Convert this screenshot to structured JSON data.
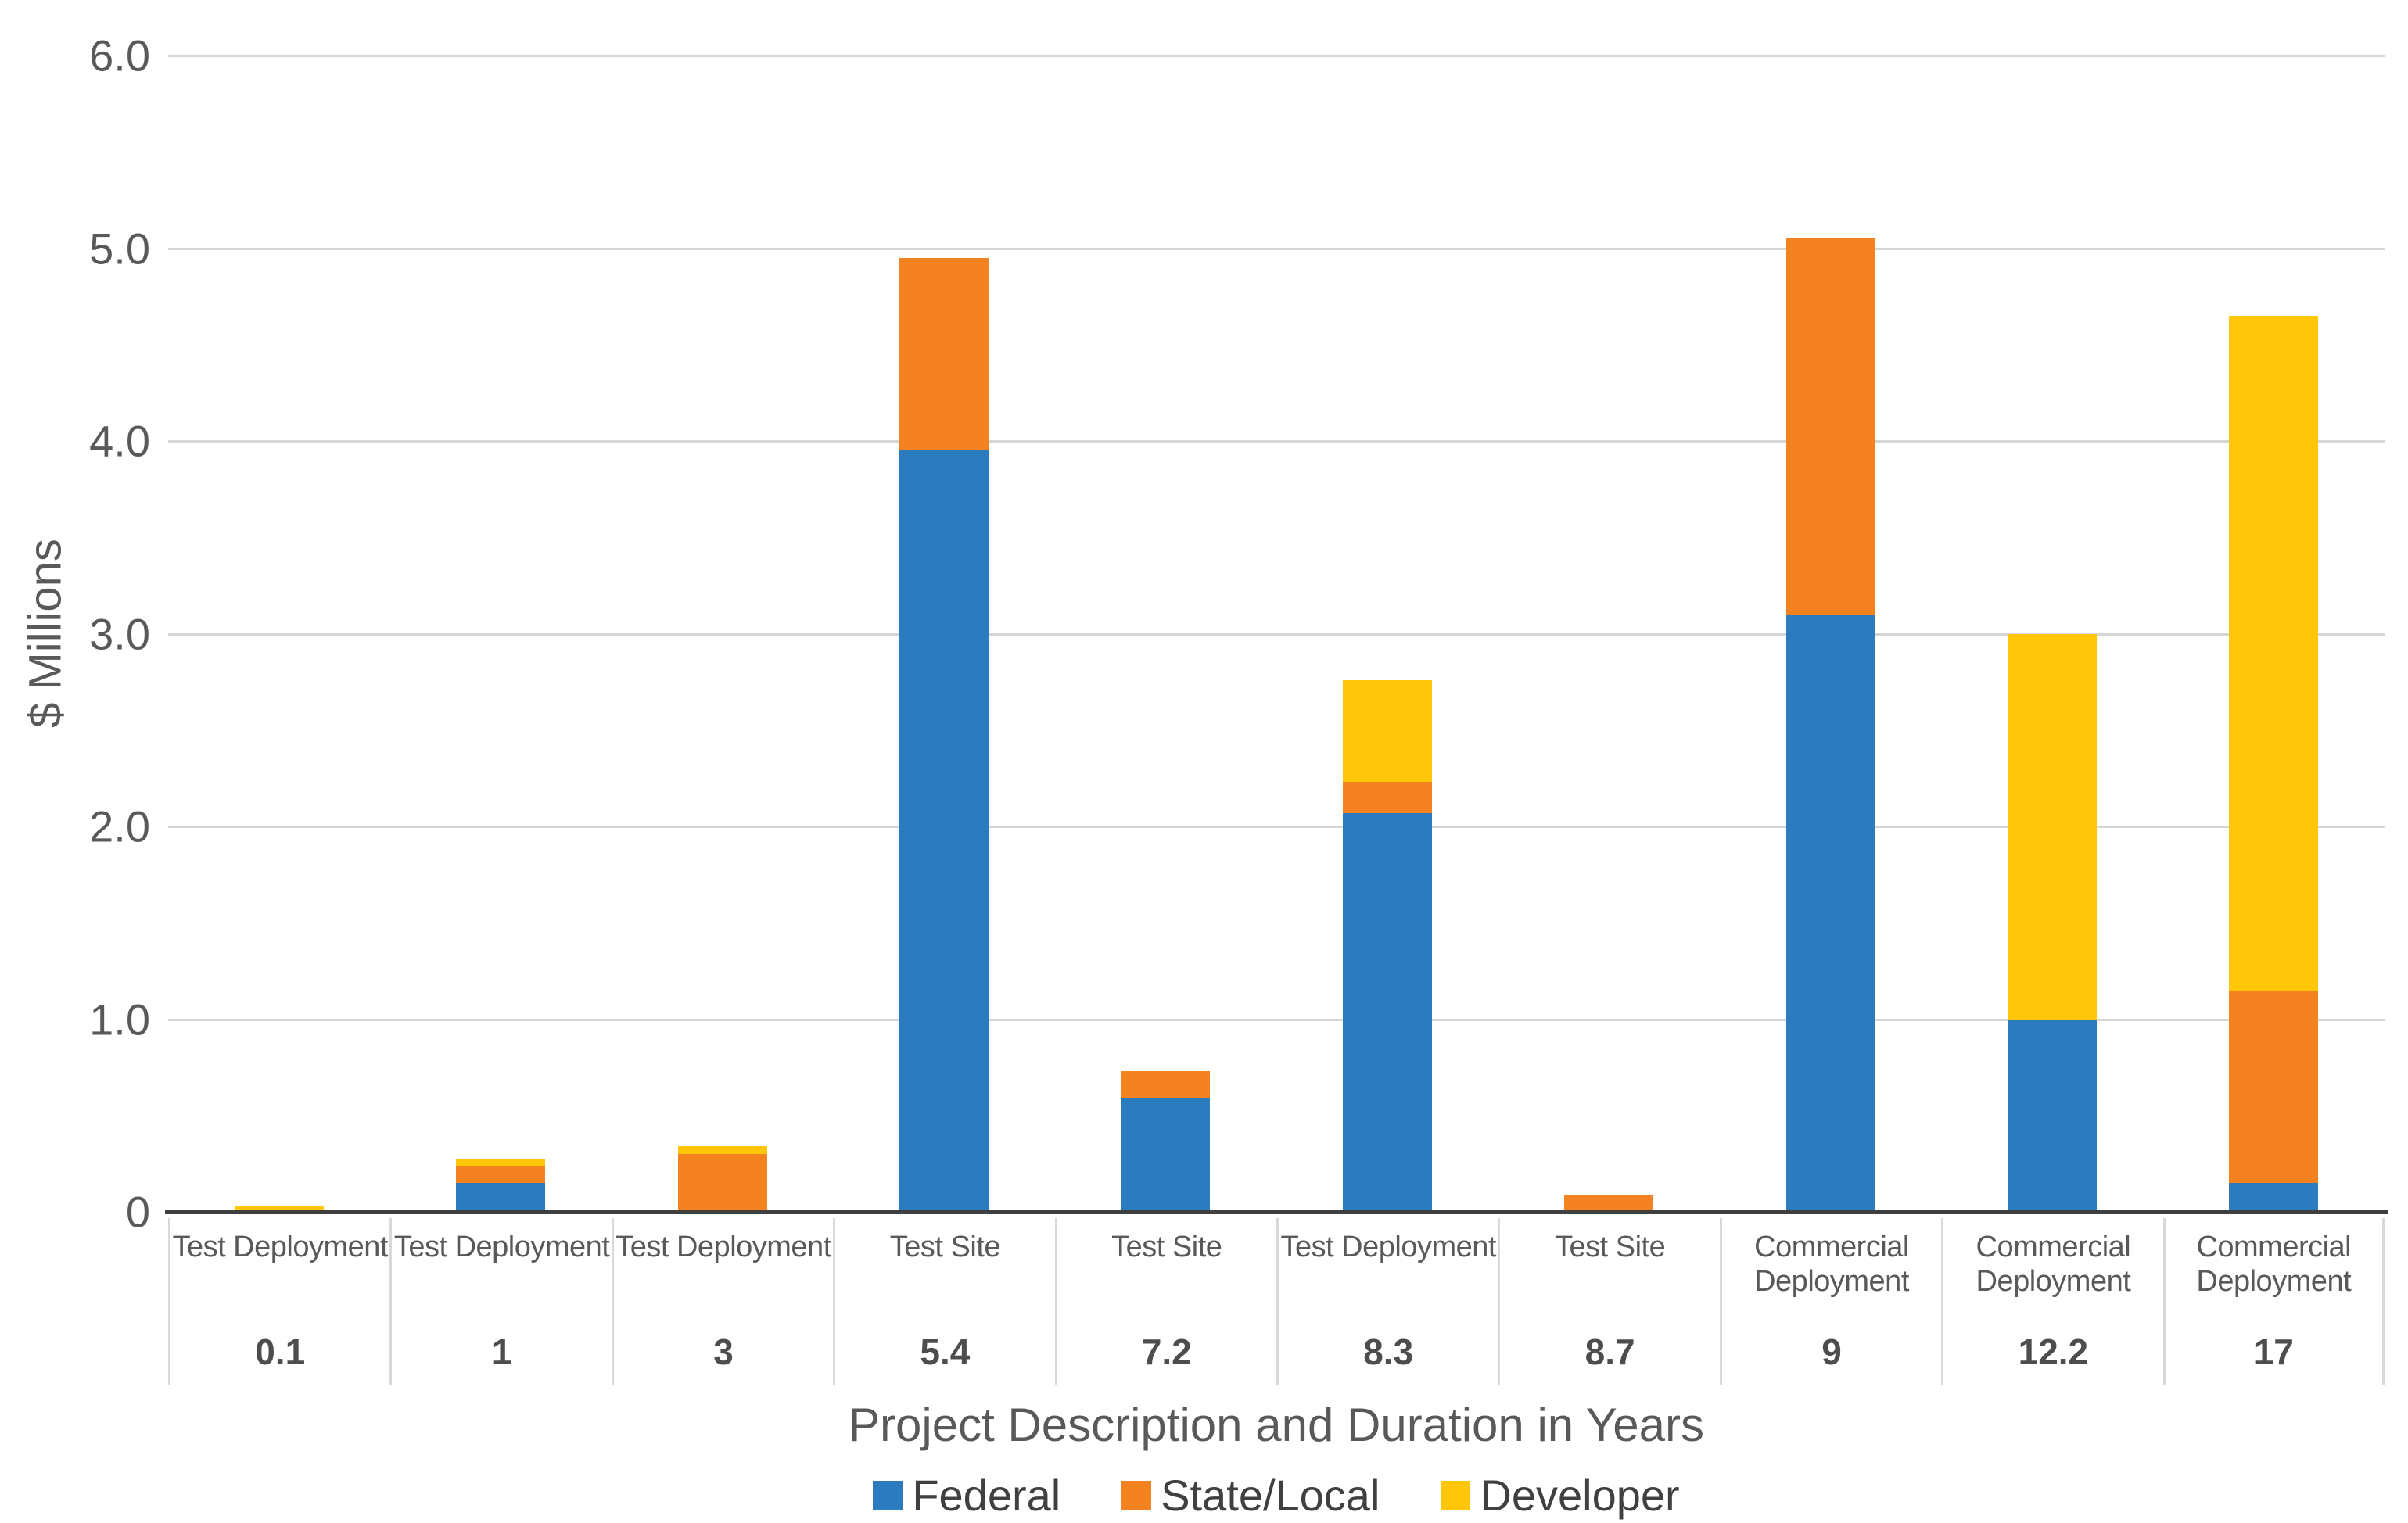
{
  "chart_data": {
    "type": "bar",
    "stacked": true,
    "title": "",
    "ylabel": "$ Millions",
    "xlabel": "Project Description and Duration in Years",
    "ylim": [
      0,
      6.0
    ],
    "grid": "horizontal",
    "legend_position": "bottom",
    "yticks": [
      {
        "label": "6.0",
        "value": 6.0
      },
      {
        "label": "5.0",
        "value": 5.0
      },
      {
        "label": "4.0",
        "value": 4.0
      },
      {
        "label": "3.0",
        "value": 3.0
      },
      {
        "label": "2.0",
        "value": 2.0
      },
      {
        "label": "1.0",
        "value": 1.0
      },
      {
        "label": "0",
        "value": 0.0
      }
    ],
    "categories": [
      {
        "description": "Test Deployment",
        "duration": "0.1"
      },
      {
        "description": "Test Deployment",
        "duration": "1"
      },
      {
        "description": "Test Deployment",
        "duration": "3"
      },
      {
        "description": "Test Site",
        "duration": "5.4"
      },
      {
        "description": "Test Site",
        "duration": "7.2"
      },
      {
        "description": "Test Deployment",
        "duration": "8.3"
      },
      {
        "description": "Test Site",
        "duration": "8.7"
      },
      {
        "description": "Commercial Deployment",
        "duration": "9"
      },
      {
        "description": "Commercial Deployment",
        "duration": "12.2"
      },
      {
        "description": "Commercial Deployment",
        "duration": "17"
      }
    ],
    "series": [
      {
        "name": "Federal",
        "color": "#2B7BBE",
        "values": [
          0,
          0.15,
          0,
          3.95,
          0.59,
          2.07,
          0,
          3.1,
          1.0,
          0.15
        ]
      },
      {
        "name": "State/Local",
        "color": "#F58220",
        "values": [
          0,
          0.09,
          0.3,
          1.0,
          0.14,
          0.16,
          0.09,
          1.95,
          0,
          1.0
        ]
      },
      {
        "name": "Developer",
        "color": "#FFC60A",
        "values": [
          0.03,
          0.03,
          0.04,
          0,
          0,
          0.53,
          0,
          0,
          2.0,
          3.5
        ]
      }
    ]
  },
  "colors": {
    "gridline": "#d6d6d6",
    "axis_line": "#3f3f3f",
    "divider": "#d9d9d9",
    "text": "#595959"
  }
}
